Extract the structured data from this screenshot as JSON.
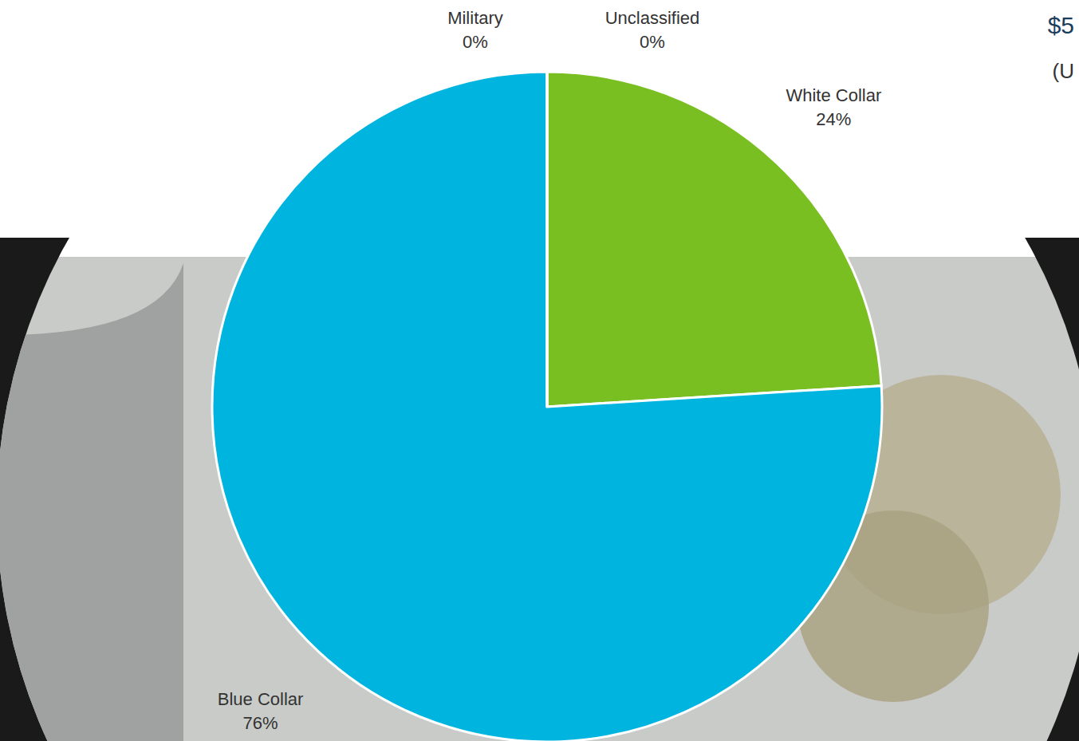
{
  "chart_data": {
    "type": "pie",
    "categories": [
      "White Collar",
      "Blue Collar",
      "Military",
      "Unclassified"
    ],
    "values": [
      24,
      76,
      0,
      0
    ],
    "value_labels": [
      "24%",
      "76%",
      "0%",
      "0%"
    ],
    "colors": [
      "#7abf22",
      "#00b4e0",
      "#2f6fc5",
      "#a5a5a5"
    ],
    "data_labels": true,
    "annotations": [
      "$5",
      "(U"
    ]
  }
}
